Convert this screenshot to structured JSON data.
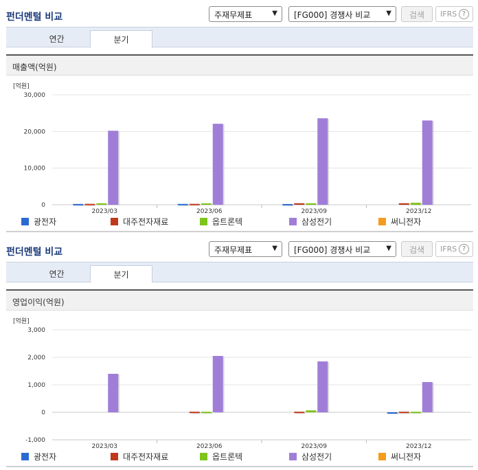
{
  "sections": [
    {
      "title": "펀더멘털 비교",
      "select1": "주재무제표",
      "select2": "[FG000] 경쟁사 비교",
      "search_label": "검색",
      "ifrs_label": "IFRS",
      "tabs": [
        "연간",
        "분기"
      ],
      "active_tab": "분기",
      "chart_title": "매출액(억원)"
    },
    {
      "title": "펀더멘털 비교",
      "select1": "주재무제표",
      "select2": "[FG000] 경쟁사 비교",
      "search_label": "검색",
      "ifrs_label": "IFRS",
      "tabs": [
        "연간",
        "분기"
      ],
      "active_tab": "분기",
      "chart_title": "영업이익(억원)"
    }
  ],
  "legend_colors": {
    "광전자": "#2a6ad2",
    "대주전자재료": "#c0391b",
    "옵트론텍": "#7fc41c",
    "삼성전기": "#a07ed8",
    "써니전자": "#f39c1e"
  },
  "chart_data": [
    {
      "type": "bar",
      "unit_label": "[억원]",
      "categories": [
        "2023/03",
        "2023/06",
        "2023/09",
        "2023/12"
      ],
      "ylim": [
        0,
        30000
      ],
      "yticks": [
        0,
        10000,
        20000,
        30000
      ],
      "ytick_labels": [
        "0",
        "10,000",
        "20,000",
        "30,000"
      ],
      "series": [
        {
          "name": "광전자",
          "values": [
            220,
            230,
            200,
            0
          ]
        },
        {
          "name": "대주전자재료",
          "values": [
            250,
            250,
            420,
            420
          ]
        },
        {
          "name": "옵트론텍",
          "values": [
            400,
            390,
            420,
            550
          ]
        },
        {
          "name": "삼성전기",
          "values": [
            20200,
            22100,
            23600,
            23000
          ]
        },
        {
          "name": "써니전자",
          "values": [
            0,
            0,
            0,
            0
          ]
        }
      ]
    },
    {
      "type": "bar",
      "unit_label": "[억원]",
      "categories": [
        "2023/03",
        "2023/06",
        "2023/09",
        "2023/12"
      ],
      "ylim": [
        -1000,
        3000
      ],
      "yticks": [
        -1000,
        0,
        1000,
        2000,
        3000
      ],
      "ytick_labels": [
        "-1,000",
        "0",
        "1,000",
        "2,000",
        "3,000"
      ],
      "series": [
        {
          "name": "광전자",
          "values": [
            0,
            0,
            0,
            -40
          ]
        },
        {
          "name": "대주전자재료",
          "values": [
            0,
            20,
            20,
            20
          ]
        },
        {
          "name": "옵트론텍",
          "values": [
            0,
            20,
            70,
            20
          ]
        },
        {
          "name": "삼성전기",
          "values": [
            1400,
            2050,
            1850,
            1100
          ]
        },
        {
          "name": "써니전자",
          "values": [
            0,
            0,
            0,
            0
          ]
        }
      ]
    }
  ]
}
